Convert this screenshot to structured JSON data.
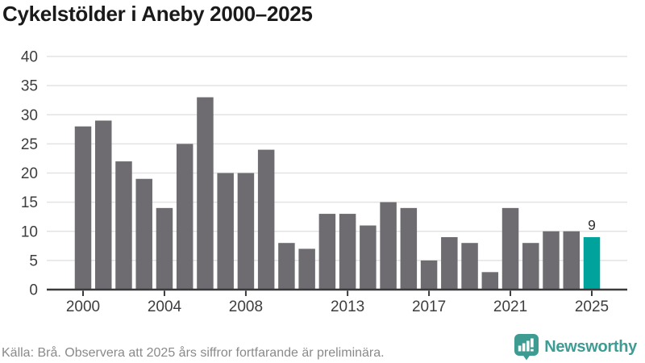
{
  "title": "Cykelstölder i Aneby 2000–2025",
  "footer": {
    "source": "Källa: Brå. Observera att 2025 års siffror fortfarande är preliminära.",
    "brand": "Newsworthy"
  },
  "colors": {
    "bar": "#6e6c71",
    "highlight": "#00a39b",
    "axis_line": "#3b3b3d",
    "axis_text": "#3e3e40",
    "gridline": "#e3e3e3",
    "title_text": "#1a1a1a",
    "footer_text": "#8a8a8a",
    "annotation_text": "#2f2f31",
    "brand_color": "#3e9c94"
  },
  "chart_data": {
    "type": "bar",
    "title": "Cykelstölder i Aneby 2000–2025",
    "xlabel": "",
    "ylabel": "",
    "x": [
      2000,
      2001,
      2002,
      2003,
      2004,
      2005,
      2006,
      2007,
      2008,
      2009,
      2010,
      2011,
      2012,
      2013,
      2014,
      2015,
      2016,
      2017,
      2018,
      2019,
      2020,
      2021,
      2022,
      2023,
      2024,
      2025
    ],
    "values": [
      28,
      29,
      22,
      19,
      14,
      25,
      33,
      20,
      20,
      24,
      8,
      7,
      13,
      13,
      11,
      15,
      14,
      5,
      9,
      8,
      3,
      14,
      8,
      10,
      10,
      9
    ],
    "highlight_index": 25,
    "ylim": [
      0,
      40
    ],
    "y_ticks": [
      0,
      5,
      10,
      15,
      20,
      25,
      30,
      35,
      40
    ],
    "x_ticks": [
      2000,
      2004,
      2008,
      2013,
      2017,
      2021,
      2025
    ],
    "grid": true,
    "legend": "none",
    "annotations": [
      {
        "x": 2025,
        "text": "9"
      }
    ]
  }
}
